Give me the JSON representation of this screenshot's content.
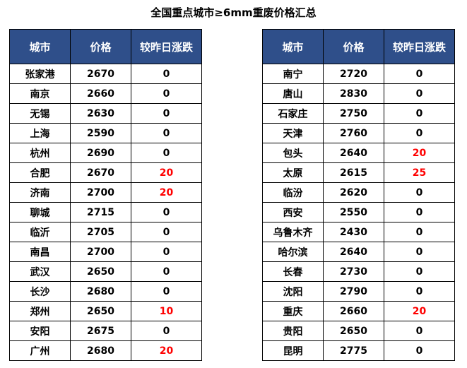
{
  "title": "全国重点城市≥6mm重废价格汇总",
  "colors": {
    "header_bg": "#2f4f8a",
    "header_text": "#ffffff",
    "increase_text": "#ff0000",
    "normal_text": "#000000"
  },
  "left_table": {
    "headers": [
      "城市",
      "价格",
      "较昨日涨跌"
    ],
    "rows": [
      {
        "city": "张家港",
        "price": "2670",
        "change": "0"
      },
      {
        "city": "南京",
        "price": "2660",
        "change": "0"
      },
      {
        "city": "无锡",
        "price": "2630",
        "change": "0"
      },
      {
        "city": "上海",
        "price": "2590",
        "change": "0"
      },
      {
        "city": "杭州",
        "price": "2690",
        "change": "0"
      },
      {
        "city": "合肥",
        "price": "2670",
        "change": "20"
      },
      {
        "city": "济南",
        "price": "2700",
        "change": "20"
      },
      {
        "city": "聊城",
        "price": "2715",
        "change": "0"
      },
      {
        "city": "临沂",
        "price": "2705",
        "change": "0"
      },
      {
        "city": "南昌",
        "price": "2700",
        "change": "0"
      },
      {
        "city": "武汉",
        "price": "2650",
        "change": "0"
      },
      {
        "city": "长沙",
        "price": "2680",
        "change": "0"
      },
      {
        "city": "郑州",
        "price": "2650",
        "change": "10"
      },
      {
        "city": "安阳",
        "price": "2675",
        "change": "0"
      },
      {
        "city": "广州",
        "price": "2680",
        "change": "20"
      }
    ]
  },
  "right_table": {
    "headers": [
      "城市",
      "价格",
      "较昨日涨跌"
    ],
    "rows": [
      {
        "city": "南宁",
        "price": "2720",
        "change": "0"
      },
      {
        "city": "唐山",
        "price": "2830",
        "change": "0"
      },
      {
        "city": "石家庄",
        "price": "2750",
        "change": "0"
      },
      {
        "city": "天津",
        "price": "2760",
        "change": "0"
      },
      {
        "city": "包头",
        "price": "2640",
        "change": "20"
      },
      {
        "city": "太原",
        "price": "2615",
        "change": "25"
      },
      {
        "city": "临汾",
        "price": "2620",
        "change": "0"
      },
      {
        "city": "西安",
        "price": "2550",
        "change": "0"
      },
      {
        "city": "乌鲁木齐",
        "price": "2430",
        "change": "0"
      },
      {
        "city": "哈尔滨",
        "price": "2640",
        "change": "0"
      },
      {
        "city": "长春",
        "price": "2730",
        "change": "0"
      },
      {
        "city": "沈阳",
        "price": "2790",
        "change": "0"
      },
      {
        "city": "重庆",
        "price": "2660",
        "change": "20"
      },
      {
        "city": "贵阳",
        "price": "2650",
        "change": "0"
      },
      {
        "city": "昆明",
        "price": "2775",
        "change": "0"
      }
    ]
  }
}
